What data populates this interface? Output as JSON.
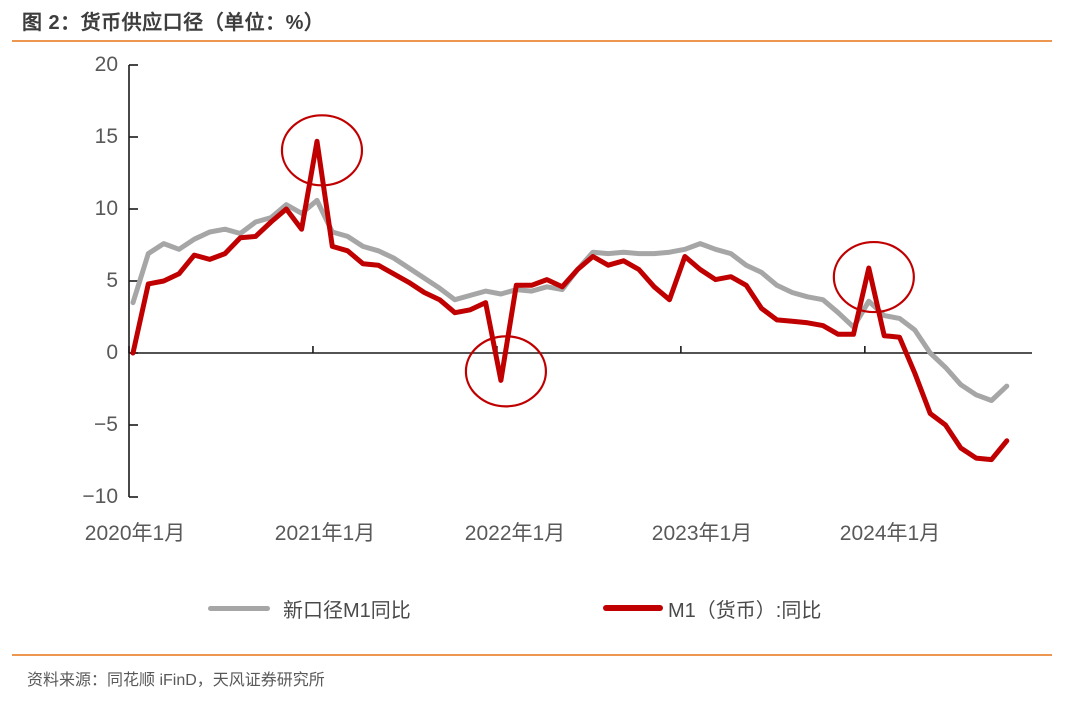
{
  "header": {
    "title": "图 2：货币供应口径（单位：%）"
  },
  "source": {
    "text": "资料来源：同花顺 iFinD，天风证券研究所"
  },
  "colors": {
    "accent_orange": "#ED9650",
    "line_gray": "#A6A6A6",
    "line_red": "#C00000",
    "axis": "#1a1a1a",
    "tick_label": "#595959"
  },
  "legend": {
    "items": [
      {
        "label": "新口径M1同比",
        "color": "#A6A6A6"
      },
      {
        "label": "M1（货币）:同比",
        "color": "#C00000"
      }
    ]
  },
  "chart_data": {
    "type": "line",
    "title": "货币供应口径（单位：%）",
    "ylabel": "",
    "xlabel": "",
    "ylim": [
      -10,
      20
    ],
    "grid": false,
    "legend_position": "bottom",
    "y_ticks": [
      20,
      15,
      10,
      5,
      0,
      -5,
      -10
    ],
    "y_tick_labels": [
      "20",
      "15",
      "10",
      "5",
      "0",
      "−5",
      "−10"
    ],
    "x_tick_labels": [
      "2020年1月",
      "2021年1月",
      "2022年1月",
      "2023年1月",
      "2024年1月"
    ],
    "x_tick_month_index": [
      0,
      12,
      24,
      36,
      48
    ],
    "months": [
      "2020-01",
      "2020-02",
      "2020-03",
      "2020-04",
      "2020-05",
      "2020-06",
      "2020-07",
      "2020-08",
      "2020-09",
      "2020-10",
      "2020-11",
      "2020-12",
      "2021-01",
      "2021-02",
      "2021-03",
      "2021-04",
      "2021-05",
      "2021-06",
      "2021-07",
      "2021-08",
      "2021-09",
      "2021-10",
      "2021-11",
      "2021-12",
      "2022-01",
      "2022-02",
      "2022-03",
      "2022-04",
      "2022-05",
      "2022-06",
      "2022-07",
      "2022-08",
      "2022-09",
      "2022-10",
      "2022-11",
      "2022-12",
      "2023-01",
      "2023-02",
      "2023-03",
      "2023-04",
      "2023-05",
      "2023-06",
      "2023-07",
      "2023-08",
      "2023-09",
      "2023-10",
      "2023-11",
      "2023-12",
      "2024-01",
      "2024-02",
      "2024-03",
      "2024-04",
      "2024-05",
      "2024-06",
      "2024-07",
      "2024-08",
      "2024-09",
      "2024-10"
    ],
    "series": [
      {
        "name": "新口径M1同比",
        "color": "#A6A6A6",
        "values": [
          3.5,
          6.9,
          7.6,
          7.2,
          7.9,
          8.4,
          8.6,
          8.3,
          9.1,
          9.4,
          10.3,
          9.7,
          10.6,
          8.4,
          8.1,
          7.4,
          7.1,
          6.6,
          5.9,
          5.2,
          4.5,
          3.7,
          4.0,
          4.3,
          4.1,
          4.4,
          4.3,
          4.6,
          4.4,
          5.8,
          7.0,
          6.9,
          7.0,
          6.9,
          6.9,
          7.0,
          7.2,
          7.6,
          7.2,
          6.9,
          6.1,
          5.6,
          4.7,
          4.2,
          3.9,
          3.7,
          2.8,
          1.8,
          3.6,
          2.6,
          2.4,
          1.6,
          0.0,
          -1.0,
          -2.2,
          -2.9,
          -3.3,
          -2.3
        ]
      },
      {
        "name": "M1（货币）:同比",
        "color": "#C00000",
        "values": [
          0.0,
          4.8,
          5.0,
          5.5,
          6.8,
          6.5,
          6.9,
          8.0,
          8.1,
          9.1,
          10.0,
          8.6,
          14.7,
          7.4,
          7.1,
          6.2,
          6.1,
          5.5,
          4.9,
          4.2,
          3.7,
          2.8,
          3.0,
          3.5,
          -1.9,
          4.7,
          4.7,
          5.1,
          4.6,
          5.8,
          6.7,
          6.1,
          6.4,
          5.8,
          4.6,
          3.7,
          6.7,
          5.8,
          5.1,
          5.3,
          4.7,
          3.1,
          2.3,
          2.2,
          2.1,
          1.9,
          1.3,
          1.3,
          5.9,
          1.2,
          1.1,
          -1.4,
          -4.2,
          -5.0,
          -6.6,
          -7.3,
          -7.4,
          -6.1
        ]
      }
    ],
    "annotations": [
      {
        "shape": "circle",
        "series": "M1（货币）:同比",
        "month": "2021-01",
        "month_index": 12,
        "value": 14.7
      },
      {
        "shape": "circle",
        "series": "M1（货币）:同比",
        "month": "2022-01",
        "month_index": 24,
        "value": -1.9
      },
      {
        "shape": "circle",
        "series": "M1（货币）:同比",
        "month": "2024-01",
        "month_index": 48,
        "value": 5.9
      }
    ]
  }
}
